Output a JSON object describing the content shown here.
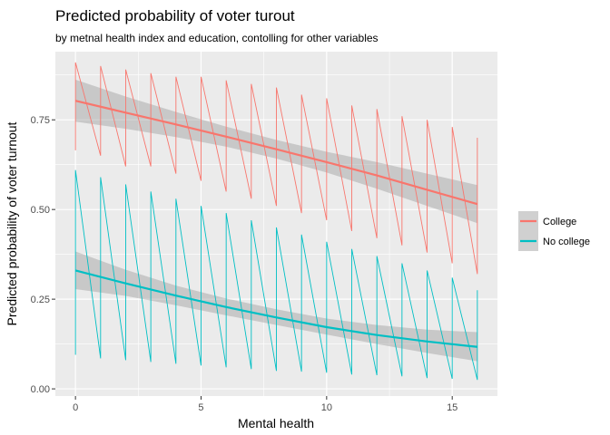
{
  "chart_data": {
    "type": "line",
    "title": "Predicted probability of voter turout",
    "subtitle": "by metnal health index and education, contolling for other variables",
    "xlabel": "Mental health",
    "ylabel": "Predicted probability of voter turnout",
    "xlim": [
      -0.8,
      16.8
    ],
    "ylim": [
      -0.02,
      0.94
    ],
    "x_ticks": [
      0,
      5,
      10,
      15
    ],
    "x_tick_labels": [
      "0",
      "5",
      "10",
      "15"
    ],
    "y_ticks": [
      0.0,
      0.25,
      0.5,
      0.75
    ],
    "y_tick_labels": [
      "0.00",
      "0.25",
      "0.50",
      "0.75"
    ],
    "grid": true,
    "legend_position": "right",
    "series": [
      {
        "name": "College",
        "color": "#F8766D",
        "fit": {
          "x": [
            0,
            2,
            4,
            6,
            8,
            10,
            12,
            14,
            16
          ],
          "y": [
            0.803,
            0.77,
            0.737,
            0.703,
            0.668,
            0.632,
            0.595,
            0.555,
            0.515
          ],
          "lower": [
            0.745,
            0.725,
            0.702,
            0.675,
            0.642,
            0.603,
            0.558,
            0.51,
            0.462
          ],
          "upper": [
            0.862,
            0.815,
            0.772,
            0.731,
            0.694,
            0.661,
            0.632,
            0.6,
            0.568
          ]
        },
        "raw": {
          "x": [
            0,
            0,
            1,
            1,
            2,
            2,
            3,
            3,
            4,
            4,
            5,
            5,
            6,
            6,
            7,
            7,
            8,
            8,
            9,
            9,
            10,
            10,
            11,
            11,
            12,
            12,
            13,
            13,
            14,
            14,
            15,
            15,
            16,
            16
          ],
          "y": [
            0.665,
            0.91,
            0.65,
            0.9,
            0.62,
            0.89,
            0.62,
            0.88,
            0.6,
            0.87,
            0.58,
            0.87,
            0.55,
            0.86,
            0.53,
            0.85,
            0.51,
            0.84,
            0.49,
            0.82,
            0.47,
            0.81,
            0.44,
            0.79,
            0.42,
            0.78,
            0.4,
            0.76,
            0.38,
            0.75,
            0.35,
            0.73,
            0.32,
            0.7
          ]
        }
      },
      {
        "name": "No college",
        "color": "#00BFC4",
        "fit": {
          "x": [
            0,
            2,
            4,
            6,
            8,
            10,
            12,
            14,
            16
          ],
          "y": [
            0.33,
            0.294,
            0.26,
            0.228,
            0.199,
            0.172,
            0.15,
            0.132,
            0.117
          ],
          "lower": [
            0.278,
            0.259,
            0.233,
            0.205,
            0.178,
            0.151,
            0.125,
            0.1,
            0.077
          ],
          "upper": [
            0.383,
            0.332,
            0.288,
            0.252,
            0.222,
            0.196,
            0.178,
            0.165,
            0.158
          ]
        },
        "raw": {
          "x": [
            0,
            0,
            1,
            1,
            2,
            2,
            3,
            3,
            4,
            4,
            5,
            5,
            6,
            6,
            7,
            7,
            8,
            8,
            9,
            9,
            10,
            10,
            11,
            11,
            12,
            12,
            13,
            13,
            14,
            14,
            15,
            15,
            16,
            16
          ],
          "y": [
            0.095,
            0.61,
            0.085,
            0.59,
            0.08,
            0.57,
            0.075,
            0.55,
            0.07,
            0.53,
            0.065,
            0.51,
            0.06,
            0.49,
            0.055,
            0.47,
            0.05,
            0.45,
            0.048,
            0.43,
            0.045,
            0.41,
            0.04,
            0.39,
            0.038,
            0.37,
            0.035,
            0.35,
            0.03,
            0.33,
            0.028,
            0.31,
            0.025,
            0.275
          ]
        }
      }
    ]
  }
}
